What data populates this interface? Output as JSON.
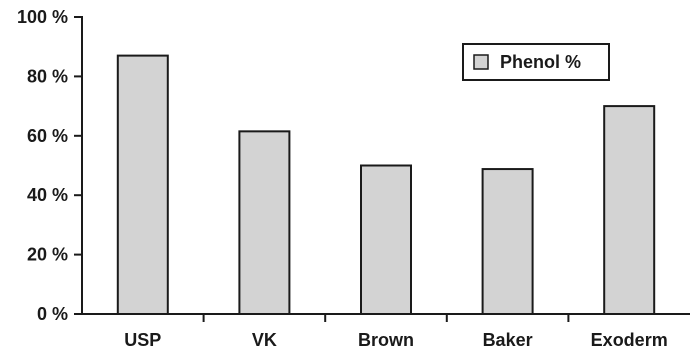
{
  "chart_data": {
    "type": "bar",
    "categories": [
      "USP",
      "VK",
      "Brown",
      "Baker",
      "Exoderm"
    ],
    "series": [
      {
        "name": "Phenol %",
        "values": [
          87,
          61.5,
          50,
          48.8,
          70
        ]
      }
    ],
    "title": "",
    "xlabel": "",
    "ylabel": "",
    "ylim": [
      0,
      100
    ],
    "yticks": [
      "0 %",
      "20 %",
      "40 %",
      "60 %",
      "80 %",
      "100 %"
    ],
    "legend": {
      "position": "top-right",
      "label": "Phenol %"
    },
    "grid": false,
    "colors": {
      "bar_fill": "#d3d3d3",
      "bar_stroke": "#1a1a1a",
      "axis": "#1a1a1a"
    }
  }
}
